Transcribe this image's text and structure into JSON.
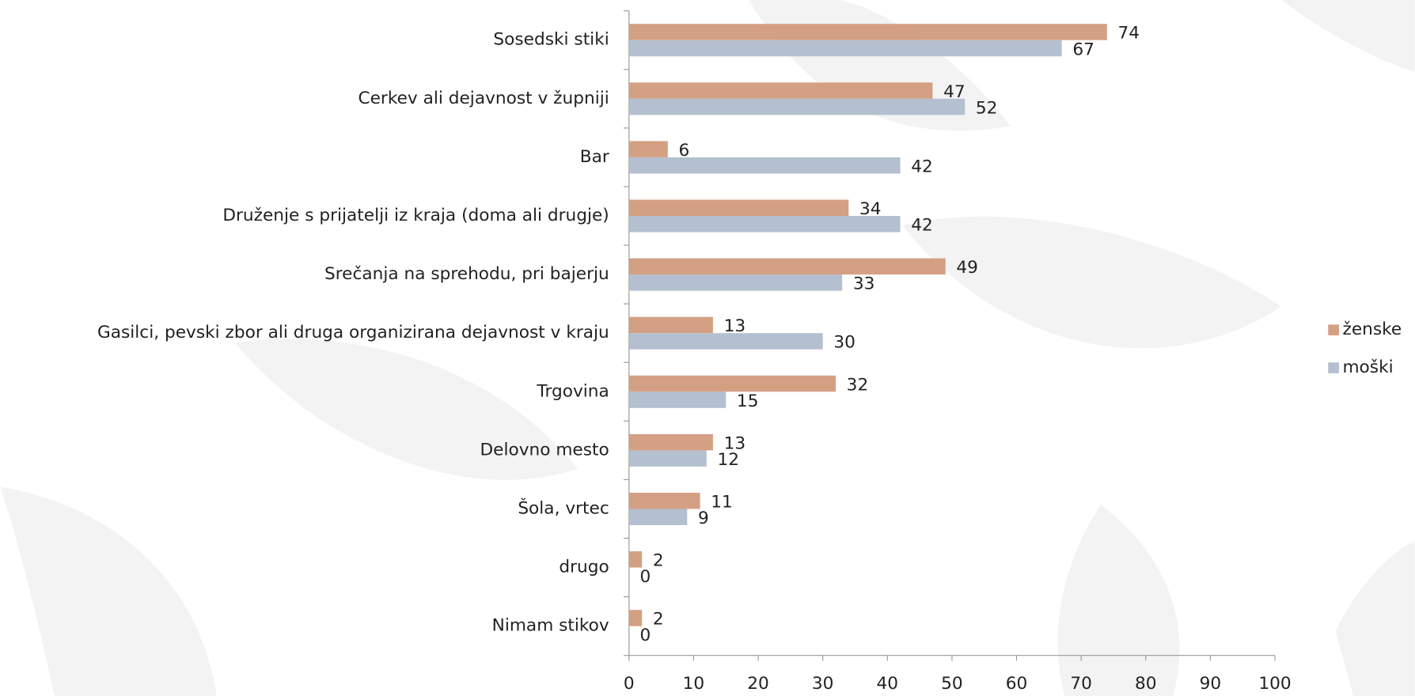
{
  "chart_data": {
    "type": "bar",
    "orientation": "horizontal",
    "categories": [
      "Sosedski stiki",
      "Cerkev ali dejavnost v župniji",
      "Bar",
      "Druženje s prijatelji iz kraja (doma ali drugje)",
      "Srečanja na sprehodu, pri bajerju",
      "Gasilci, pevski zbor ali druga organizirana dejavnost v kraju",
      "Trgovina",
      "Delovno mesto",
      "Šola, vrtec",
      "drugo",
      "Nimam stikov"
    ],
    "series": [
      {
        "name": "ženske",
        "color": "#d4a083",
        "values": [
          74,
          47,
          6,
          34,
          49,
          13,
          32,
          13,
          11,
          2,
          2
        ]
      },
      {
        "name": "moški",
        "color": "#b4bfcf",
        "values": [
          67,
          52,
          42,
          42,
          33,
          30,
          15,
          12,
          9,
          0,
          0
        ]
      }
    ],
    "xlim": [
      0,
      100
    ],
    "xticks": [
      0,
      10,
      20,
      30,
      40,
      50,
      60,
      70,
      80,
      90,
      100
    ],
    "legend": "right",
    "grid": false
  }
}
